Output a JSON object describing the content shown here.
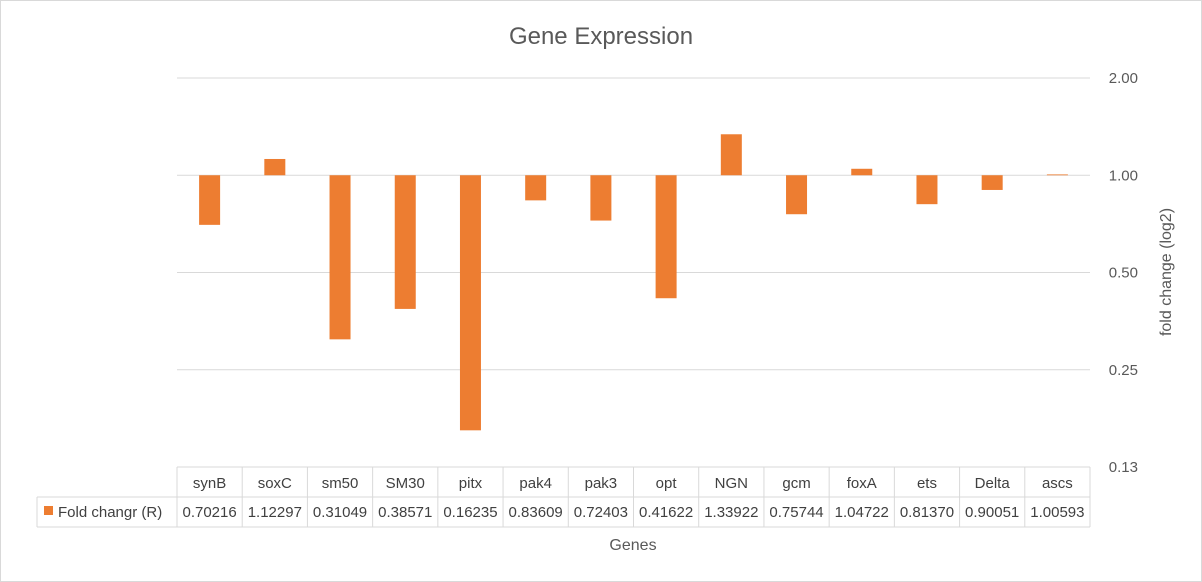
{
  "chart_data": {
    "type": "bar",
    "title": "Gene Expression",
    "xlabel": "Genes",
    "ylabel": "fold change (log2)",
    "y_scale": "log2",
    "ylim": [
      0.125,
      2.0
    ],
    "yticks": [
      2.0,
      1.0,
      0.5,
      0.25,
      0.125
    ],
    "ytick_labels": [
      "2.00",
      "1.00",
      "0.50",
      "0.25",
      "0.13"
    ],
    "y_axis_position": "right",
    "baseline": 1.0,
    "grid": true,
    "categories": [
      "synB",
      "soxC",
      "sm50",
      "SM30",
      "pitx",
      "pak4",
      "pak3",
      "opt",
      "NGN",
      "gcm",
      "foxA",
      "ets",
      "Delta",
      "ascs"
    ],
    "series": [
      {
        "name": "Fold changr (R)",
        "color": "#ED7D31",
        "values": [
          0.70216,
          1.12297,
          0.31049,
          0.38571,
          0.16235,
          0.83609,
          0.72403,
          0.41622,
          1.33922,
          0.75744,
          1.04722,
          0.8137,
          0.90051,
          1.00593
        ],
        "value_labels": [
          "0.70216",
          "1.12297",
          "0.31049",
          "0.38571",
          "0.16235",
          "0.83609",
          "0.72403",
          "0.41622",
          "1.33922",
          "0.75744",
          "1.04722",
          "0.81370",
          "0.90051",
          "1.00593"
        ]
      }
    ],
    "data_table": true
  }
}
